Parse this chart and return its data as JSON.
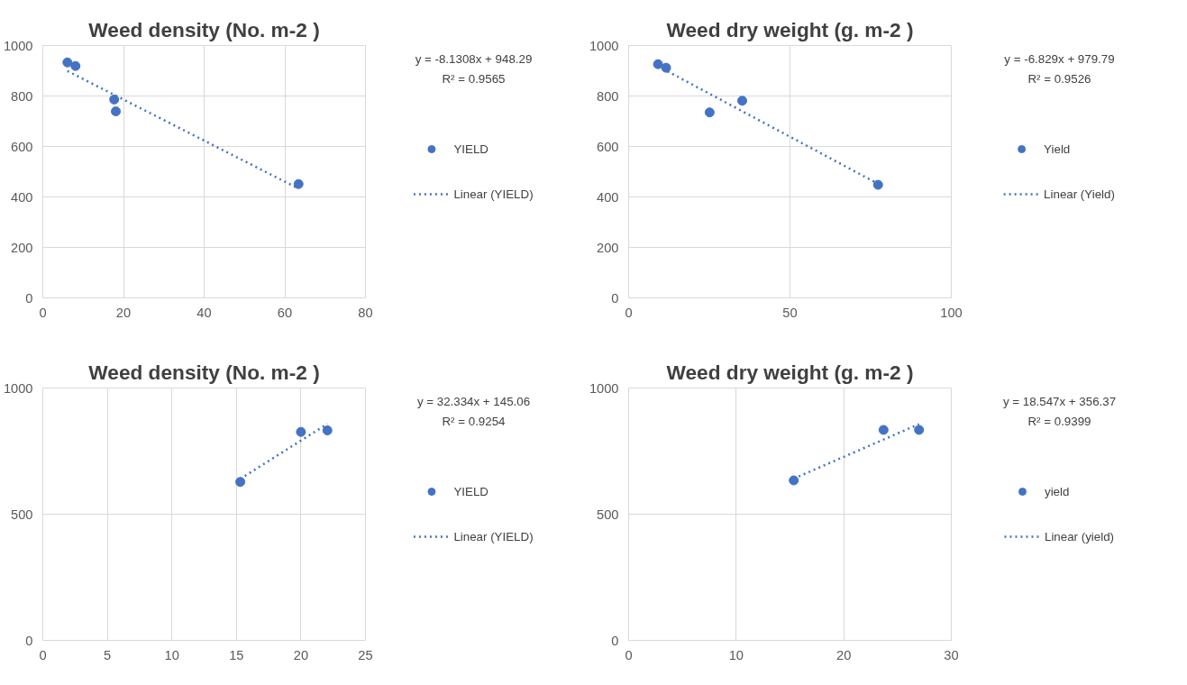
{
  "chart_data": [
    {
      "type": "scatter",
      "title": "Weed density (No. m-2 )",
      "xlim": [
        0,
        80
      ],
      "ylim": [
        0,
        1000
      ],
      "xticks": [
        0,
        20,
        40,
        60,
        80
      ],
      "yticks": [
        0,
        200,
        400,
        600,
        800,
        1000
      ],
      "grid": true,
      "legend": "right",
      "marker": "circle",
      "annotations": [
        "y = -8.1308x + 948.29",
        "R² = 0.9565"
      ],
      "series": [
        {
          "name": "YIELD",
          "type": "scatter",
          "color": "#4472c4",
          "x": [
            6.1,
            8.1,
            17.7,
            18.1,
            63.4
          ],
          "values": [
            933,
            919,
            786,
            739,
            451
          ]
        },
        {
          "name": "Linear (YIELD)",
          "type": "line",
          "marker": "none",
          "line_style": "dotted",
          "color": "#4472c4",
          "x": [
            6.1,
            63.4
          ],
          "values": [
            899,
            433
          ]
        }
      ]
    },
    {
      "type": "scatter",
      "title": "Weed dry weight (g. m-2 )",
      "xlim": [
        0,
        100
      ],
      "ylim": [
        0,
        1000
      ],
      "xticks": [
        0,
        50,
        100
      ],
      "yticks": [
        0,
        200,
        400,
        600,
        800,
        1000
      ],
      "grid": true,
      "legend": "right",
      "marker": "circle",
      "annotations": [
        "y = -6.829x + 979.79",
        "R² = 0.9526"
      ],
      "series": [
        {
          "name": "Yield",
          "type": "scatter",
          "color": "#4472c4",
          "x": [
            9.1,
            11.6,
            25.1,
            35.2,
            77.3
          ],
          "values": [
            926,
            912,
            735,
            781,
            448
          ]
        },
        {
          "name": "Linear (Yield)",
          "type": "line",
          "marker": "none",
          "line_style": "dotted",
          "color": "#4472c4",
          "x": [
            9.1,
            77.3
          ],
          "values": [
            918,
            452
          ]
        }
      ]
    },
    {
      "type": "scatter",
      "title": "Weed density (No. m-2 )",
      "xlim": [
        0,
        25
      ],
      "ylim": [
        0,
        1000
      ],
      "xticks": [
        0,
        5,
        10,
        15,
        20,
        25
      ],
      "yticks": [
        0,
        500,
        1000
      ],
      "grid": true,
      "legend": "right",
      "marker": "circle",
      "annotations": [
        "y = 32.334x + 145.06",
        "R² = 0.9254"
      ],
      "series": [
        {
          "name": "YIELD",
          "type": "scatter",
          "color": "#4472c4",
          "x": [
            15.3,
            20.0,
            22.05
          ],
          "values": [
            628,
            826,
            832
          ]
        },
        {
          "name": "Linear (YIELD)",
          "type": "line",
          "marker": "none",
          "line_style": "dotted",
          "color": "#4472c4",
          "x": [
            15.3,
            22.05
          ],
          "values": [
            640,
            858
          ]
        }
      ]
    },
    {
      "type": "scatter",
      "title": "Weed dry weight (g. m-2 )",
      "xlim": [
        0,
        30
      ],
      "ylim": [
        0,
        1000
      ],
      "xticks": [
        0,
        10,
        20,
        30
      ],
      "yticks": [
        0,
        500,
        1000
      ],
      "grid": true,
      "legend": "right",
      "marker": "circle",
      "annotations": [
        "y = 18.547x + 356.37",
        "R² = 0.9399"
      ],
      "series": [
        {
          "name": "yield",
          "type": "scatter",
          "color": "#4472c4",
          "x": [
            15.35,
            23.7,
            27.0
          ],
          "values": [
            634,
            834,
            834
          ]
        },
        {
          "name": "Linear (yield)",
          "type": "line",
          "marker": "none",
          "line_style": "dotted",
          "color": "#4472c4",
          "x": [
            15.35,
            27.0
          ],
          "values": [
            641,
            857
          ]
        }
      ]
    }
  ]
}
